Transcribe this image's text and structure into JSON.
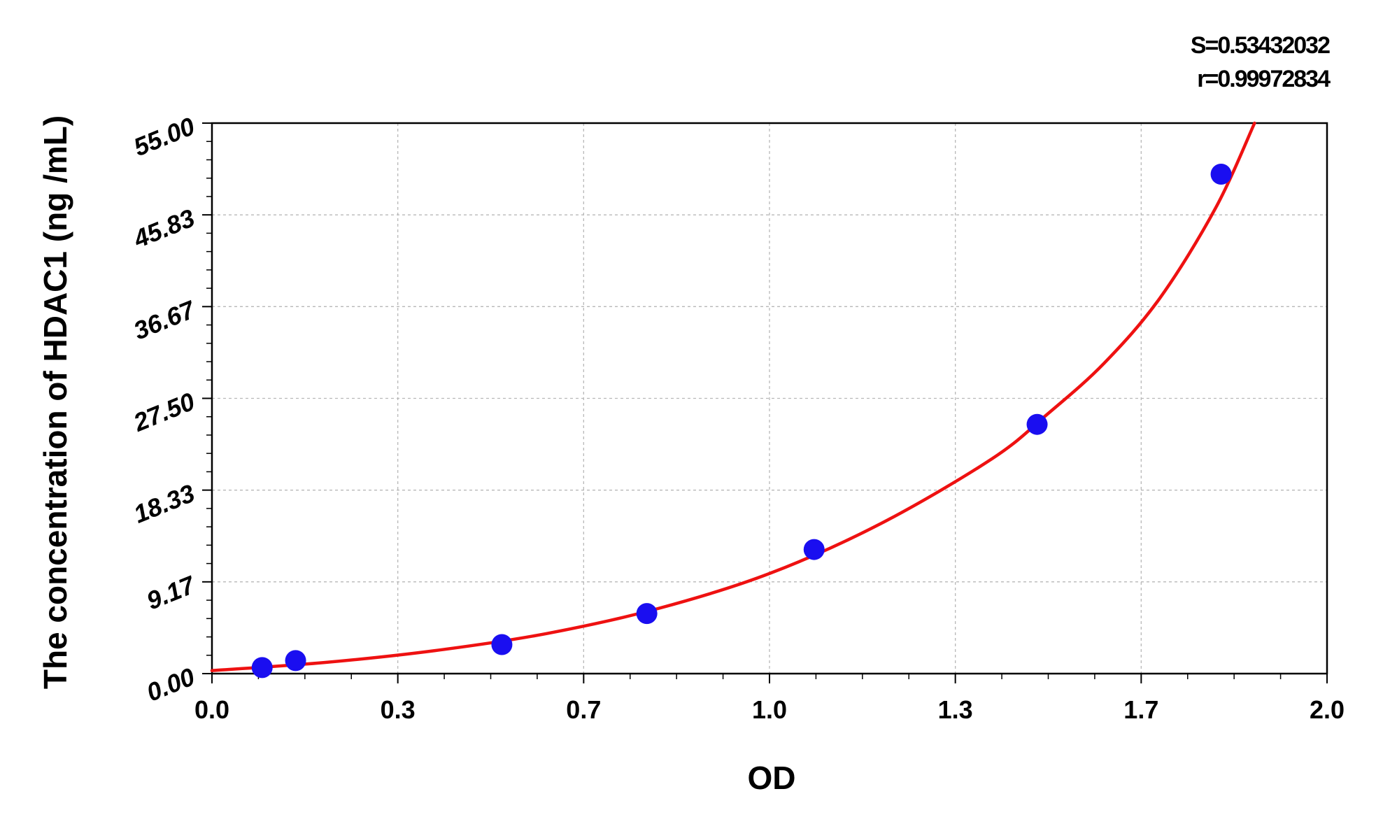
{
  "chart_data": {
    "type": "scatter",
    "title": "",
    "xlabel": "OD",
    "ylabel": "The concentration of HDAC1 (ng /mL)",
    "xlim": [
      0.0,
      2.0
    ],
    "ylim": [
      0.0,
      55.0
    ],
    "x_ticks": [
      "0.0",
      "0.3",
      "0.7",
      "1.0",
      "1.3",
      "1.7",
      "2.0"
    ],
    "y_ticks": [
      "0.00",
      "9.17",
      "18.33",
      "27.50",
      "36.67",
      "45.83",
      "55.00"
    ],
    "grid": true,
    "annotations": [
      "S=0.53432032",
      "r=0.99972834"
    ],
    "points": {
      "color": "#1a0ef0",
      "x": [
        0.09,
        0.15,
        0.52,
        0.78,
        1.08,
        1.48,
        1.81
      ],
      "y": [
        0.6,
        1.3,
        2.9,
        6.0,
        12.4,
        24.9,
        49.9
      ]
    },
    "fit_curve": {
      "color": "#ee1111",
      "x": [
        0.0,
        0.2,
        0.4,
        0.6,
        0.8,
        1.0,
        1.2,
        1.4,
        1.5,
        1.6,
        1.7,
        1.8,
        1.87
      ],
      "y": [
        0.3,
        1.1,
        2.3,
        4.0,
        6.5,
        10.0,
        15.0,
        21.5,
        26.0,
        31.0,
        37.5,
        46.5,
        55.0
      ]
    }
  }
}
